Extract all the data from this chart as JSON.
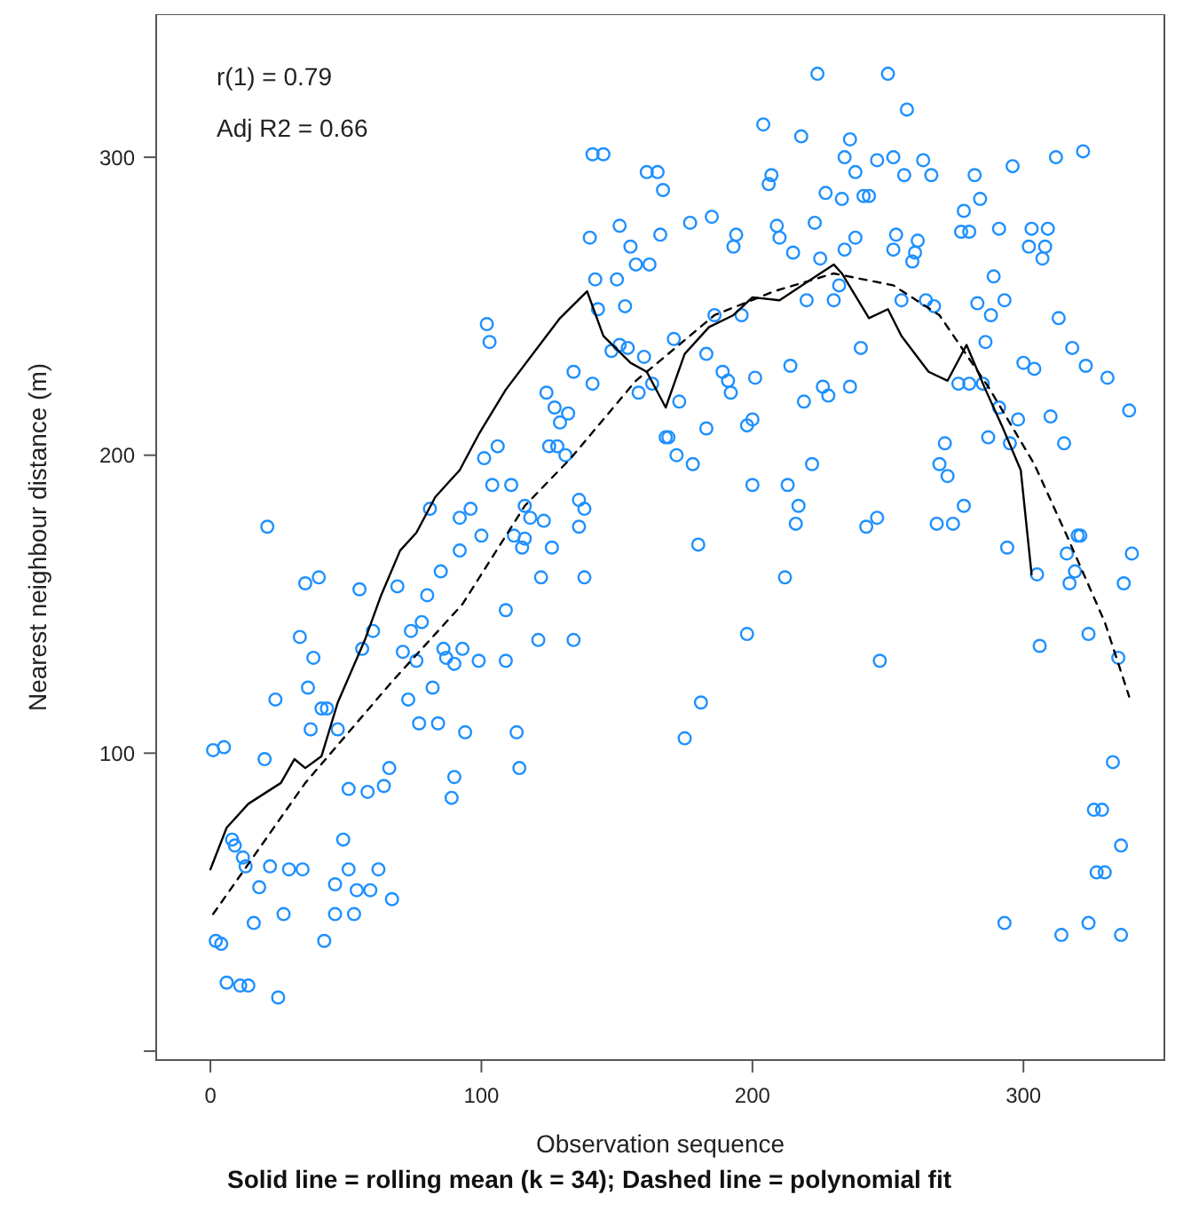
{
  "chart_data": {
    "type": "scatter",
    "xlabel": "Observation sequence",
    "ylabel": "Nearest neighbour distance (m)",
    "annotations": [
      "r(1) = 0.79",
      "Adj R2 = 0.66",
      "Solid line = rolling mean (k = 34); Dashed line = polynomial fit"
    ],
    "xlim": [
      -20,
      352
    ],
    "ylim": [
      -3,
      348
    ],
    "xticks": [
      0,
      100,
      200,
      300
    ],
    "yticks": [
      {
        "value": 0,
        "label": null
      },
      100,
      200,
      300
    ],
    "grid": false,
    "series": [
      {
        "color": "#1e90ff",
        "marker": "circle",
        "x": [
          1,
          5,
          20,
          24,
          33,
          35,
          40,
          38,
          36,
          41,
          43,
          37,
          47,
          55,
          69,
          56,
          60,
          71,
          76,
          74,
          78,
          80,
          85,
          92,
          100,
          73,
          82,
          77,
          84,
          94,
          86,
          87,
          90,
          93,
          99,
          109,
          109,
          121,
          134,
          122,
          138,
          115,
          126,
          113,
          114,
          90,
          89,
          66,
          51,
          58,
          64,
          8,
          9,
          12,
          13,
          22,
          29,
          34,
          49,
          18,
          16,
          27,
          42,
          46,
          51,
          54,
          59,
          62,
          67,
          46,
          53,
          2,
          4,
          6,
          11,
          14,
          25,
          21,
          81,
          92,
          96,
          102,
          103,
          104,
          111,
          101,
          106,
          116,
          118,
          123,
          112,
          116,
          136,
          138,
          136,
          124,
          127,
          129,
          132,
          125,
          128,
          131,
          134,
          141,
          142,
          150,
          143,
          153,
          140,
          151,
          155,
          157,
          162,
          141,
          145,
          161,
          165,
          167,
          166,
          148,
          151,
          154,
          160,
          158,
          163,
          168,
          224,
          250,
          257,
          204,
          218,
          236,
          234,
          246,
          252,
          263,
          207,
          206,
          238,
          256,
          266,
          282,
          296,
          312,
          322,
          227,
          233,
          241,
          243,
          278,
          284,
          177,
          185,
          209,
          210,
          194,
          193,
          215,
          223,
          238,
          234,
          225,
          253,
          252,
          261,
          260,
          259,
          277,
          280,
          291,
          303,
          309,
          302,
          308,
          307,
          289,
          293,
          283,
          288,
          313,
          318,
          323,
          331,
          339,
          286,
          300,
          304,
          287,
          295,
          315,
          298,
          310,
          291,
          276,
          280,
          285,
          271,
          269,
          272,
          278,
          268,
          274,
          320,
          294,
          255,
          264,
          267,
          240,
          236,
          228,
          226,
          219,
          214,
          222,
          213,
          217,
          216,
          242,
          246,
          200,
          198,
          200,
          201,
          189,
          191,
          192,
          183,
          173,
          169,
          172,
          178,
          183,
          180,
          220,
          230,
          196,
          186,
          171,
          232,
          212,
          198,
          247,
          181,
          175,
          305,
          306,
          316,
          319,
          317,
          321,
          340,
          337,
          324,
          335,
          333,
          326,
          329,
          336,
          327,
          330,
          293,
          314,
          324,
          336
        ],
        "values": [
          101,
          102,
          98,
          118,
          139,
          157,
          159,
          132,
          122,
          115,
          115,
          108,
          108,
          155,
          156,
          135,
          141,
          134,
          131,
          141,
          144,
          153,
          161,
          168,
          173,
          118,
          122,
          110,
          110,
          107,
          135,
          132,
          130,
          135,
          131,
          131,
          148,
          138,
          138,
          159,
          159,
          169,
          169,
          107,
          95,
          92,
          85,
          95,
          88,
          87,
          89,
          71,
          69,
          65,
          62,
          62,
          61,
          61,
          71,
          55,
          43,
          46,
          37,
          56,
          61,
          54,
          54,
          61,
          51,
          46,
          46,
          37,
          36,
          23,
          22,
          22,
          18,
          176,
          182,
          179,
          182,
          244,
          238,
          190,
          190,
          199,
          203,
          183,
          179,
          178,
          173,
          172,
          185,
          182,
          176,
          221,
          216,
          211,
          214,
          203,
          203,
          200,
          228,
          224,
          259,
          259,
          249,
          250,
          273,
          277,
          270,
          264,
          264,
          301,
          301,
          295,
          295,
          289,
          274,
          235,
          237,
          236,
          233,
          221,
          224,
          206,
          328,
          328,
          316,
          311,
          307,
          306,
          300,
          299,
          300,
          299,
          294,
          291,
          295,
          294,
          294,
          294,
          297,
          300,
          302,
          288,
          286,
          287,
          287,
          282,
          286,
          278,
          280,
          277,
          273,
          274,
          270,
          268,
          278,
          273,
          269,
          266,
          274,
          269,
          272,
          268,
          265,
          275,
          275,
          276,
          276,
          276,
          270,
          270,
          266,
          260,
          252,
          251,
          247,
          246,
          236,
          230,
          226,
          215,
          238,
          231,
          229,
          206,
          204,
          204,
          212,
          213,
          216,
          224,
          224,
          224,
          204,
          197,
          193,
          183,
          177,
          177,
          173,
          169,
          252,
          252,
          250,
          236,
          223,
          220,
          223,
          218,
          230,
          197,
          190,
          183,
          177,
          176,
          179,
          190,
          210,
          212,
          226,
          228,
          225,
          221,
          234,
          218,
          206,
          200,
          197,
          209,
          170,
          252,
          252,
          247,
          247,
          239,
          257,
          159,
          140,
          131,
          117,
          105,
          160,
          136,
          167,
          161,
          157,
          173,
          167,
          157,
          140,
          132,
          97,
          81,
          81,
          69,
          60,
          60,
          43,
          39,
          43,
          39
        ]
      },
      {
        "type": "line",
        "color": "#000000",
        "line_style": "solid",
        "x": [
          0,
          6,
          14,
          26,
          31,
          35,
          41,
          47,
          57,
          63,
          70,
          76,
          83,
          92,
          99,
          109,
          119,
          129,
          139,
          145,
          155,
          161,
          168,
          175,
          184,
          193,
          200,
          210,
          220,
          230,
          233,
          243,
          250,
          255,
          265,
          272,
          279,
          286,
          292,
          299,
          303
        ],
        "values": [
          61,
          75,
          83,
          90,
          98,
          95,
          99,
          117,
          138,
          153,
          168,
          174,
          186,
          195,
          207,
          222,
          234,
          246,
          255,
          240,
          231,
          228,
          216,
          234,
          243,
          247,
          253,
          252,
          258,
          264,
          261,
          246,
          249,
          240,
          228,
          225,
          237,
          222,
          210,
          195,
          160
        ]
      },
      {
        "type": "line",
        "color": "#000000",
        "line_style": "dashed",
        "x": [
          1,
          35,
          67,
          93,
          116,
          133,
          157,
          165,
          186,
          208,
          230,
          252,
          269,
          287,
          304,
          316,
          330,
          339
        ],
        "values": [
          46,
          90,
          124,
          150,
          183,
          199,
          225,
          231,
          247,
          255,
          261,
          257,
          247,
          223,
          197,
          173,
          144,
          119
        ]
      }
    ]
  }
}
